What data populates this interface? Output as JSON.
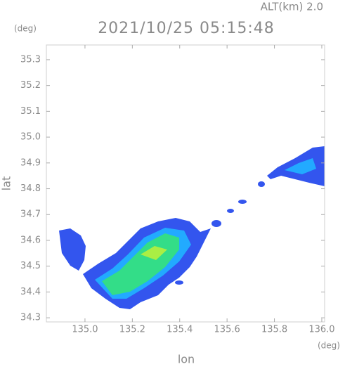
{
  "chart_data": {
    "type": "radar-map",
    "title": "2021/10/25 05:15:48",
    "annotation": "ALT(km) 2.0",
    "y_unit": "(deg)",
    "x_unit": "(deg)",
    "x_label": "lon",
    "y_label": "lat",
    "xlim": [
      134.837,
      136.012
    ],
    "ylim": [
      34.284,
      35.357
    ],
    "xticks": [
      {
        "value": 135,
        "label": "135.0"
      },
      135.2,
      135.4,
      135.6,
      135.8,
      {
        "value": 136,
        "label": "136.0"
      }
    ],
    "yticks": [
      34.3,
      34.4,
      34.5,
      34.6,
      34.7,
      34.8,
      34.9,
      {
        "value": 35,
        "label": "35.0"
      },
      35.1,
      35.2,
      35.3
    ]
  }
}
